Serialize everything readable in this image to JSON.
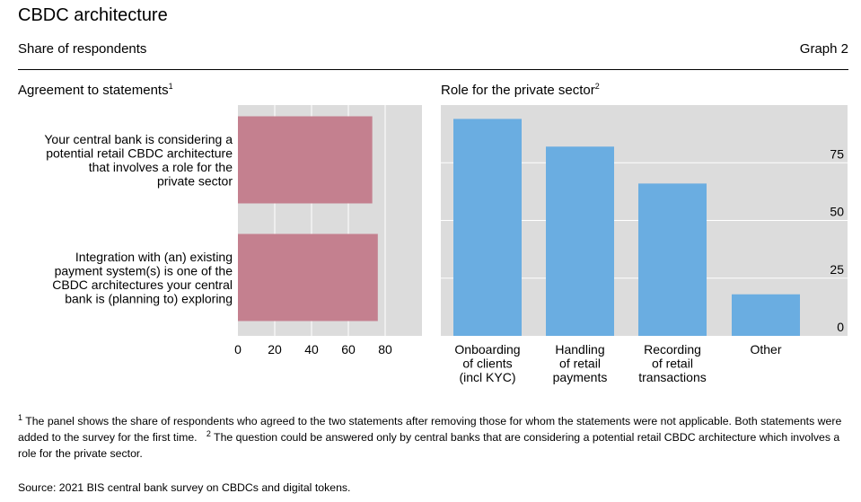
{
  "title": "CBDC architecture",
  "subtitle": "Share of respondents",
  "graph_number": "Graph 2",
  "left_panel": {
    "title": "Agreement to statements",
    "title_sup": "1"
  },
  "right_panel": {
    "title": "Role for the private sector",
    "title_sup": "2"
  },
  "footnotes": {
    "n1_mark": "1",
    "n1_text": " The panel shows the share of respondents who agreed to the two statements after removing those for whom the statements were not applicable. Both statements were added to the survey for the first time.",
    "n2_mark": "2",
    "n2_text": " The question could be answered only by central banks that are considering a potential retail CBDC architecture which involves a role for the private sector."
  },
  "source": "Source: 2021 BIS central bank survey on CBDCs and digital tokens.",
  "colors": {
    "left_bar": "#c4808f",
    "right_bar": "#6aade1",
    "plot_bg": "#dcdcdc",
    "grid": "#ffffff"
  },
  "chart_data": [
    {
      "type": "bar",
      "orientation": "horizontal",
      "title": "Agreement to statements",
      "categories": [
        [
          "Your central bank is considering a",
          "potential retail CBDC architecture",
          "that involves a role for the",
          "private sector"
        ],
        [
          "Integration with (an) existing",
          "payment system(s) is one of the",
          "CBDC architectures your central",
          "bank is (planning to) exploring"
        ]
      ],
      "values": [
        73,
        76
      ],
      "xlim": [
        0,
        100
      ],
      "xticks": [
        0,
        20,
        40,
        60,
        80
      ],
      "grid": true
    },
    {
      "type": "bar",
      "orientation": "vertical",
      "title": "Role for the private sector",
      "categories": [
        [
          "Onboarding",
          "of clients",
          "(incl KYC)"
        ],
        [
          "Handling",
          "of retail",
          "payments"
        ],
        [
          "Recording",
          "of retail",
          "transactions"
        ],
        [
          "Other"
        ]
      ],
      "values": [
        94,
        82,
        66,
        18
      ],
      "ylim": [
        0,
        100
      ],
      "yticks": [
        0,
        25,
        50,
        75
      ],
      "yaxis_side": "right",
      "grid": true
    }
  ]
}
